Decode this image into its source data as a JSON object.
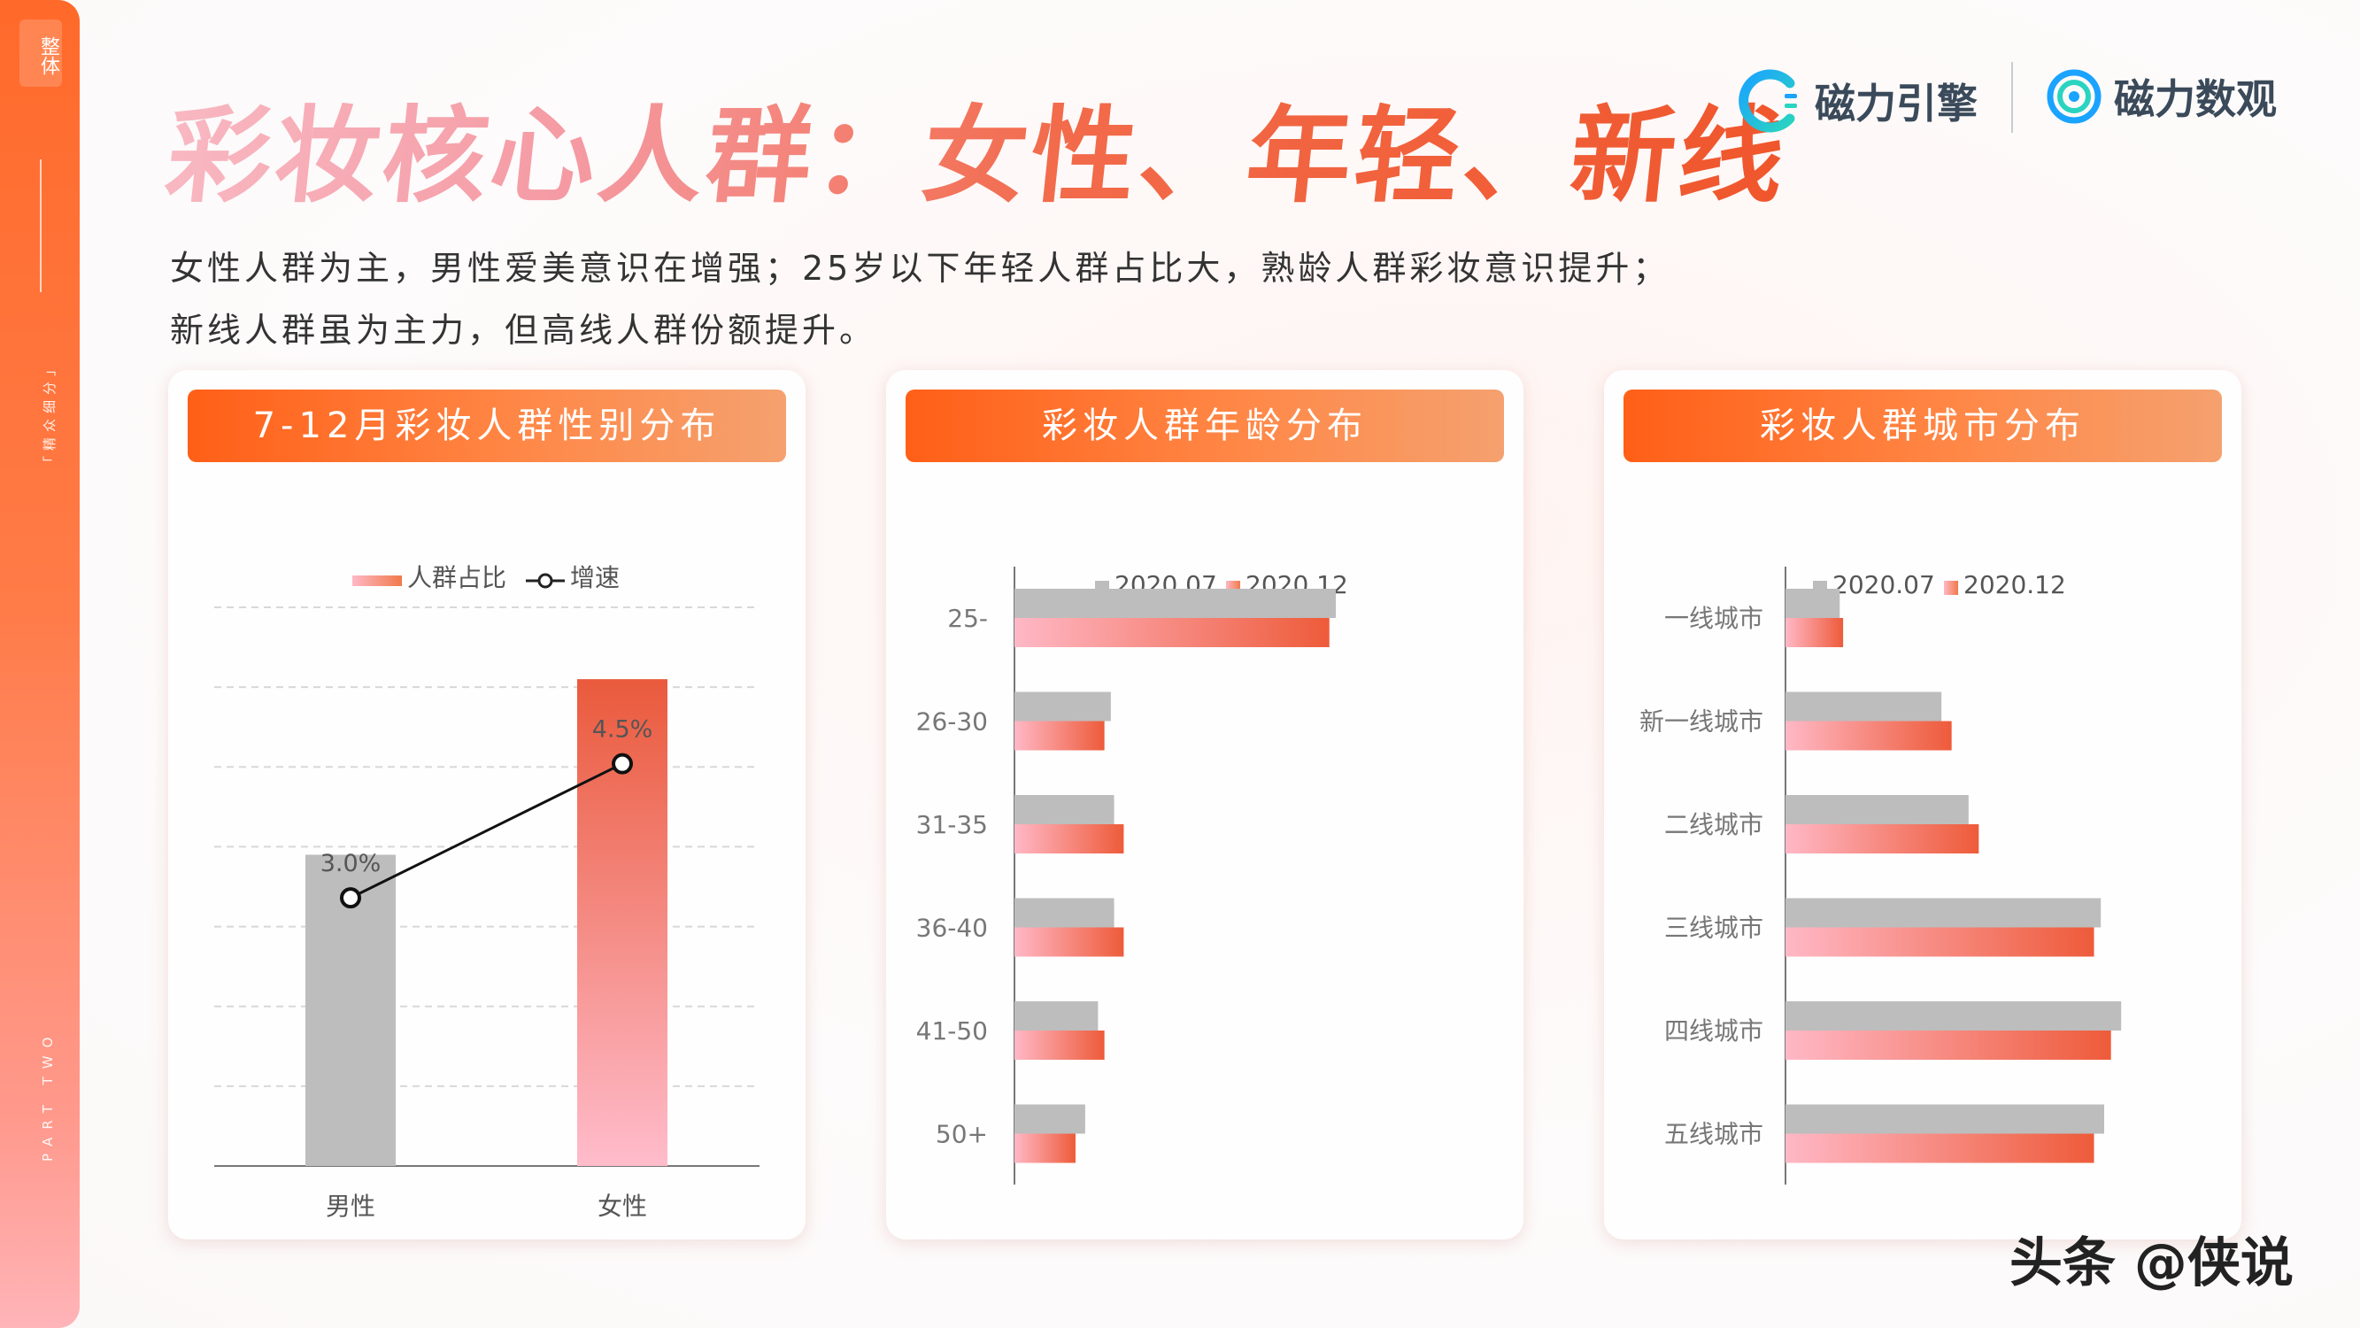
{
  "sidebar": {
    "section": "整体",
    "sub": "「精众细分」",
    "part": "PART TWO"
  },
  "title": "彩妆核心人群：女性、年轻、新线",
  "logos": {
    "brand1": "磁力引擎",
    "brand2": "磁力数观"
  },
  "subtitle": {
    "line1": "女性人群为主，男性爱美意识在增强；25岁以下年轻人群占比大，熟龄人群彩妆意识提升；",
    "line2": "新线人群虽为主力，但高线人群份额提升。"
  },
  "colors": {
    "accent": "#ff6a2a",
    "gray_bar": "#bdbdbd",
    "red_bar": "#f0643c",
    "pink_bar": "#ffb6c4"
  },
  "watermark": "头条 @侠说",
  "chart_data": [
    {
      "type": "bar",
      "title": "7-12月彩妆人群性别分布",
      "categories": [
        "男性",
        "女性"
      ],
      "series": [
        {
          "name": "人群占比",
          "type": "bar",
          "values": [
            39,
            61
          ]
        },
        {
          "name": "增速",
          "type": "line",
          "values": [
            3.0,
            4.5
          ],
          "labels": [
            "3.0%",
            "4.5%"
          ]
        }
      ],
      "legend": "top-center",
      "grid": true
    },
    {
      "type": "bar",
      "orientation": "horizontal",
      "title": "彩妆人群年龄分布",
      "categories": [
        "25-",
        "26-30",
        "31-35",
        "36-40",
        "41-50",
        "50+"
      ],
      "series": [
        {
          "name": "2020.07",
          "values": [
            100,
            30,
            31,
            31,
            26,
            22
          ]
        },
        {
          "name": "2020.12",
          "values": [
            98,
            28,
            34,
            34,
            28,
            19
          ]
        }
      ],
      "legend": "top-center",
      "grid": false
    },
    {
      "type": "bar",
      "orientation": "horizontal",
      "title": "彩妆人群城市分布",
      "categories": [
        "一线城市",
        "新一线城市",
        "二线城市",
        "三线城市",
        "四线城市",
        "五线城市"
      ],
      "series": [
        {
          "name": "2020.07",
          "values": [
            16,
            46,
            54,
            93,
            99,
            94
          ]
        },
        {
          "name": "2020.12",
          "values": [
            17,
            49,
            57,
            91,
            96,
            91
          ]
        }
      ],
      "legend": "top-center",
      "grid": false
    }
  ]
}
